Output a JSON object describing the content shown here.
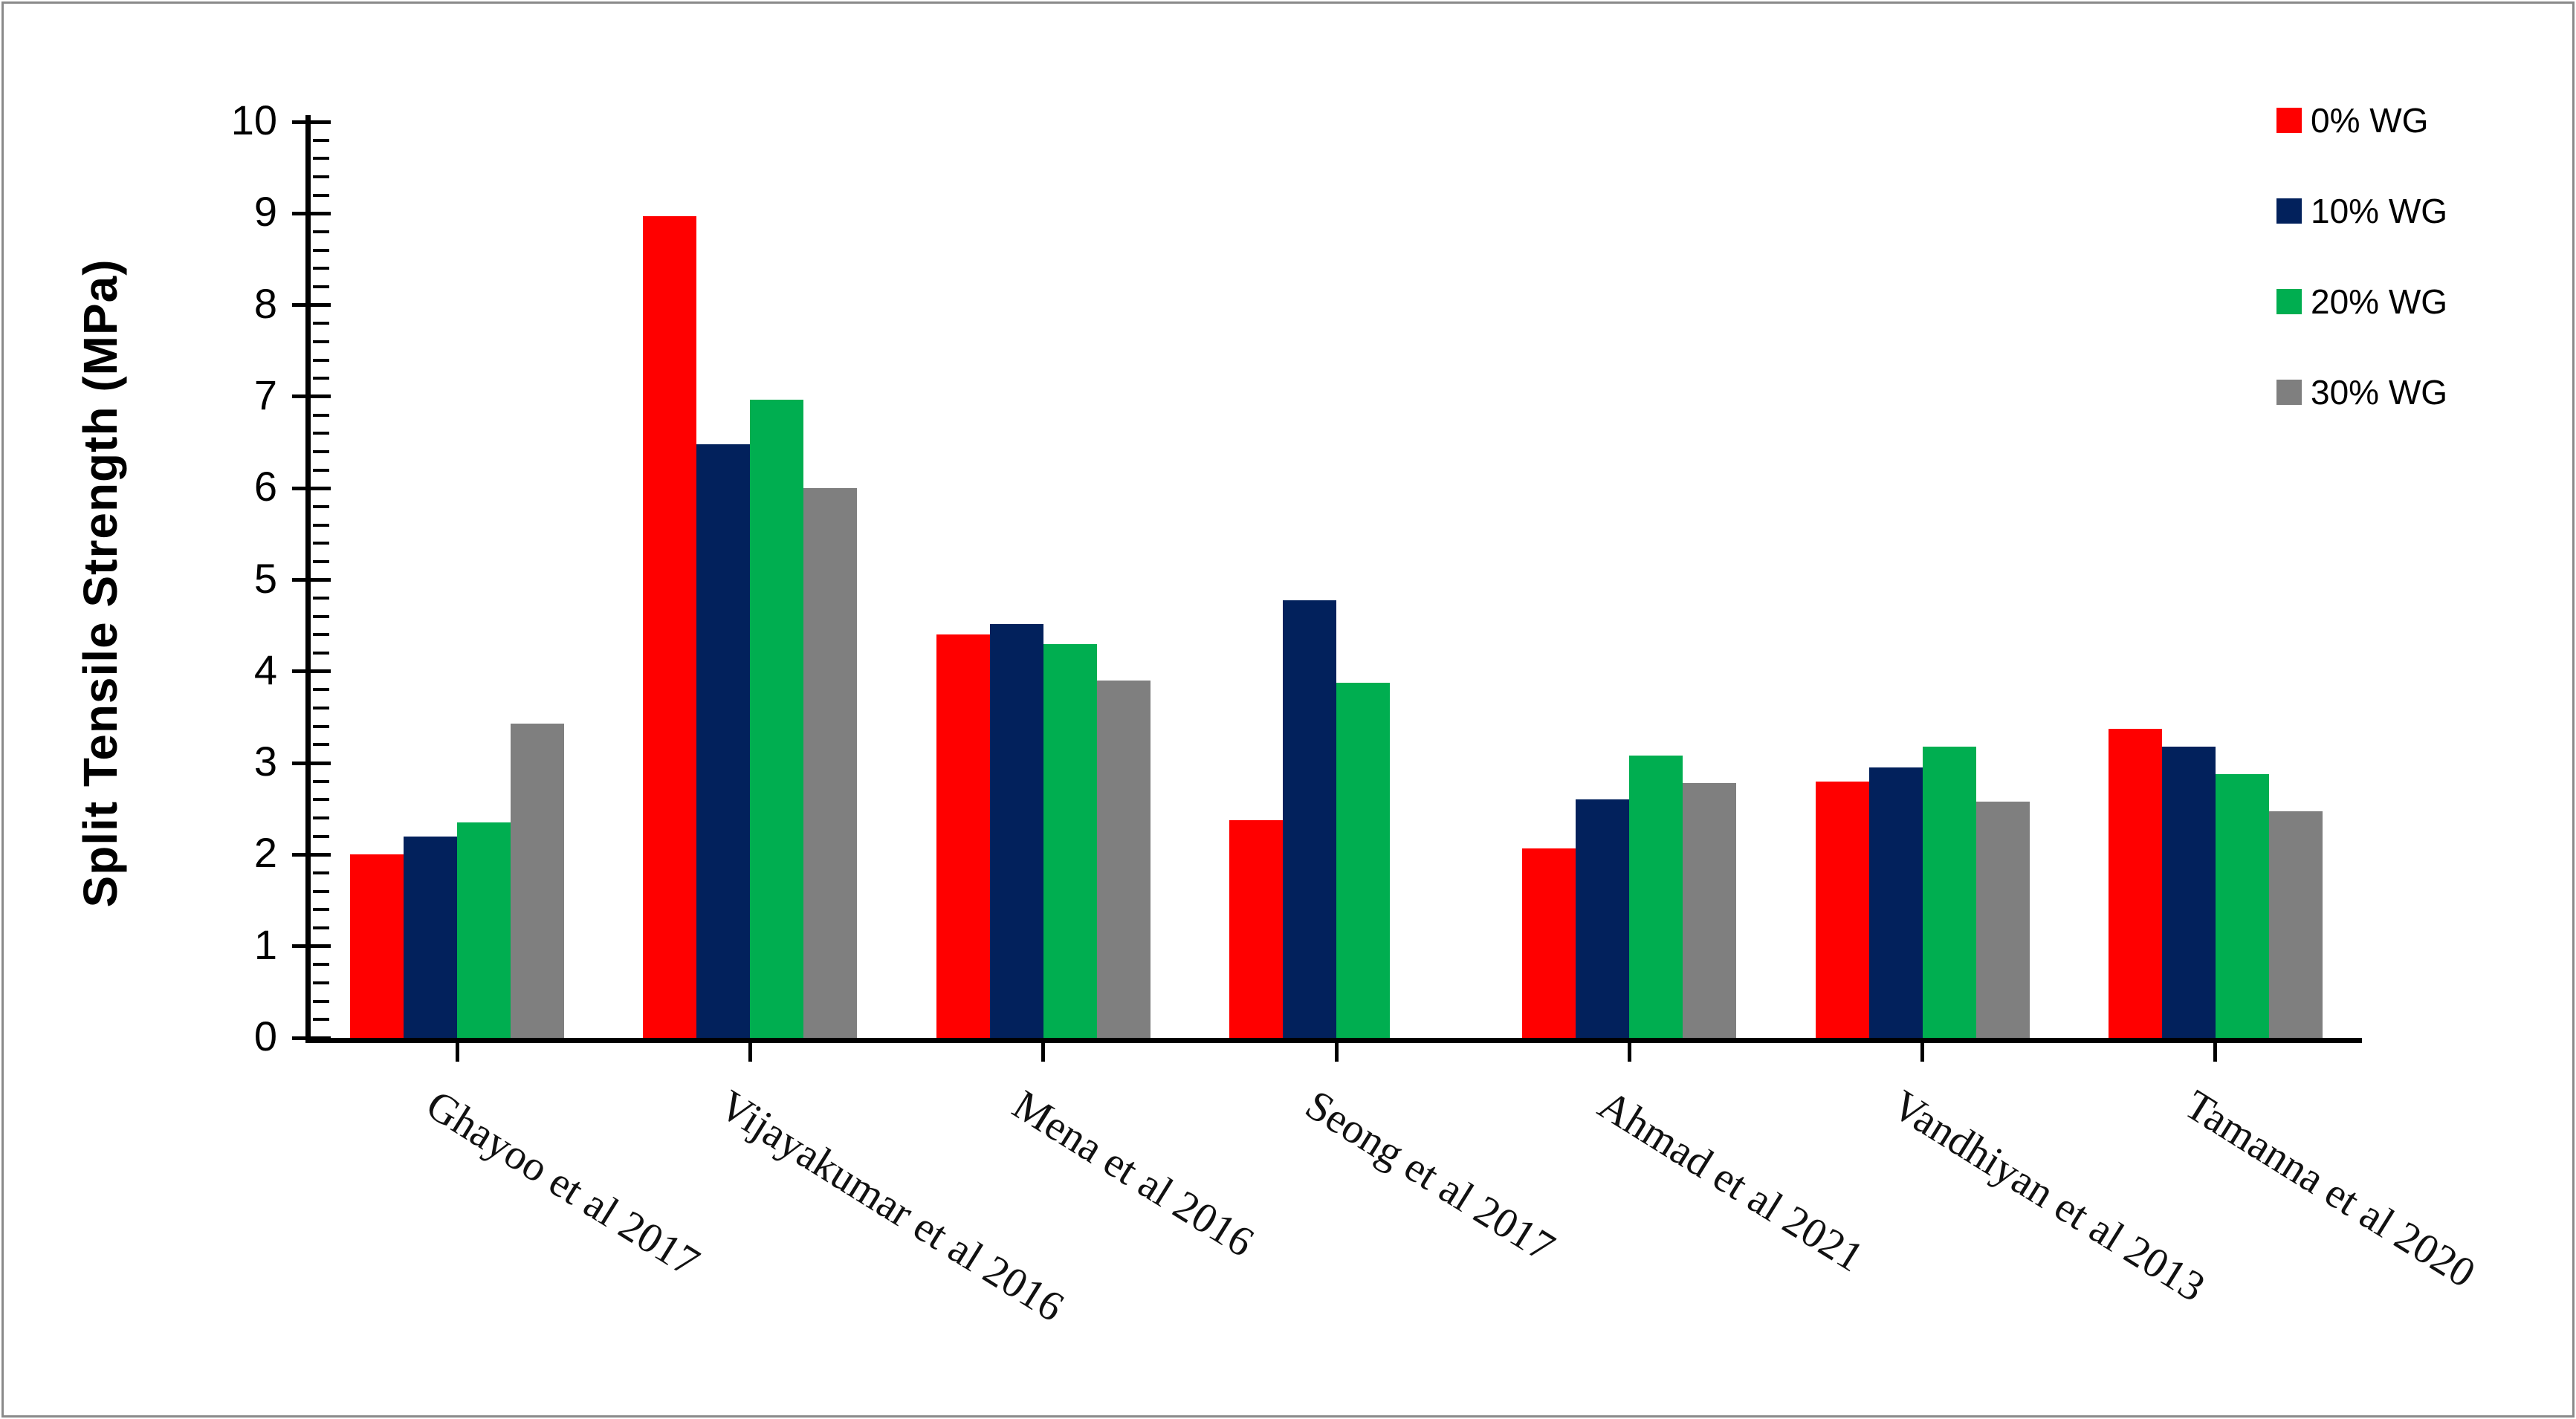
{
  "chart_data": {
    "type": "bar",
    "title": "",
    "xlabel": "",
    "ylabel": "Split Tensile Strength (MPa)",
    "ylim": [
      0,
      10
    ],
    "y_major_step": 1,
    "y_minor_step": 0.2,
    "y_tick_labels": [
      "0",
      "1",
      "2",
      "3",
      "4",
      "5",
      "6",
      "7",
      "8",
      "9",
      "10"
    ],
    "grid": false,
    "legend_position": "top-right",
    "categories": [
      "Ghayoo et al 2017",
      "Vijayakumar et al 2016",
      "Mena et al 2016",
      "Seong et al 2017",
      "Ahmad et al 2021",
      "Vandhiyan et al 2013",
      "Tamanna et al 2020"
    ],
    "series": [
      {
        "name": "0% WG",
        "color": "#FF0000",
        "values": [
          2.0,
          8.97,
          4.4,
          2.38,
          2.07,
          2.8,
          3.37
        ]
      },
      {
        "name": "10% WG",
        "color": "#02215C",
        "values": [
          2.2,
          6.48,
          4.52,
          4.78,
          2.6,
          2.95,
          3.18
        ]
      },
      {
        "name": "20% WG",
        "color": "#00AE50",
        "values": [
          2.35,
          6.97,
          4.3,
          3.88,
          3.08,
          3.18,
          2.88
        ]
      },
      {
        "name": "30% WG",
        "color": "#7F7F7F",
        "values": [
          3.43,
          6.0,
          3.9,
          null,
          2.78,
          2.58,
          2.47
        ]
      }
    ]
  }
}
